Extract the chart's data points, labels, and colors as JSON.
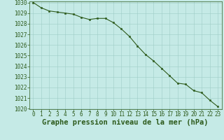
{
  "x": [
    0,
    1,
    2,
    3,
    4,
    5,
    6,
    7,
    8,
    9,
    10,
    11,
    12,
    13,
    14,
    15,
    16,
    17,
    18,
    19,
    20,
    21,
    22,
    23
  ],
  "y": [
    1030.0,
    1029.5,
    1029.2,
    1029.1,
    1029.0,
    1028.9,
    1028.6,
    1028.4,
    1028.5,
    1028.5,
    1028.1,
    1027.5,
    1026.8,
    1025.9,
    1025.1,
    1024.5,
    1023.8,
    1023.1,
    1022.4,
    1022.3,
    1021.7,
    1021.5,
    1020.8,
    1020.2
  ],
  "ylim": [
    1020,
    1030
  ],
  "xlim": [
    -0.5,
    23.5
  ],
  "yticks": [
    1020,
    1021,
    1022,
    1023,
    1024,
    1025,
    1026,
    1027,
    1028,
    1029,
    1030
  ],
  "xticks": [
    0,
    1,
    2,
    3,
    4,
    5,
    6,
    7,
    8,
    9,
    10,
    11,
    12,
    13,
    14,
    15,
    16,
    17,
    18,
    19,
    20,
    21,
    22,
    23
  ],
  "xlabel": "Graphe pression niveau de la mer (hPa)",
  "line_color": "#2d5a1b",
  "marker_color": "#2d5a1b",
  "bg_color": "#c5eae6",
  "grid_color": "#9eccc6",
  "tick_label_color": "#2d5a1b",
  "xlabel_color": "#2d5a1b",
  "tick_fontsize": 5.5,
  "xlabel_fontsize": 7.5,
  "fig_width": 3.2,
  "fig_height": 2.0,
  "dpi": 100
}
